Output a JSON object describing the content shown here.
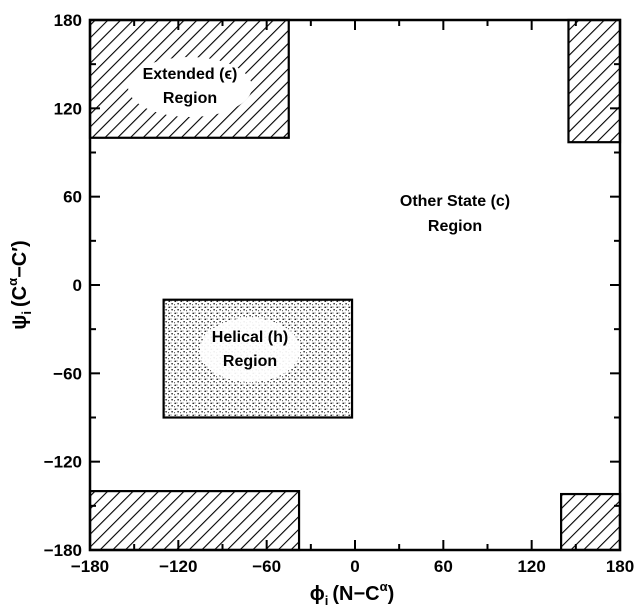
{
  "diagram": {
    "type": "ramachandran-map",
    "x_axis": {
      "label_symbol": "ϕ",
      "label_subscript": "i",
      "label_rest": "(N−C",
      "label_sup": "α",
      "label_close": ")",
      "range": [
        -180,
        180
      ],
      "ticks": [
        -180,
        -120,
        -60,
        0,
        60,
        120,
        180
      ],
      "tick_labels": [
        "−180",
        "−120",
        "−60",
        "0",
        "60",
        "120",
        "180"
      ]
    },
    "y_axis": {
      "label_symbol": "ψ",
      "label_subscript": "i",
      "label_rest": "(C",
      "label_sup": "α",
      "label_close": "−C′)",
      "range": [
        -180,
        180
      ],
      "ticks": [
        -180,
        -120,
        -60,
        0,
        60,
        120,
        180
      ],
      "tick_labels": [
        "−180",
        "−120",
        "−60",
        "0",
        "60",
        "120",
        "180"
      ]
    },
    "regions": {
      "extended": {
        "label_lines": [
          "Extended (ϵ)",
          "Region"
        ],
        "fill": "hatched",
        "boxes": [
          {
            "phi": [
              -180,
              -45
            ],
            "psi": [
              100,
              180
            ]
          },
          {
            "phi": [
              145,
              180
            ],
            "psi": [
              97,
              180
            ]
          },
          {
            "phi": [
              -180,
              -38
            ],
            "psi": [
              -180,
              -140
            ]
          },
          {
            "phi": [
              140,
              180
            ],
            "psi": [
              -180,
              -142
            ]
          }
        ]
      },
      "helical": {
        "label_lines": [
          "Helical (h)",
          "Region"
        ],
        "fill": "stippled",
        "boxes": [
          {
            "phi": [
              -130,
              -2
            ],
            "psi": [
              -90,
              -10
            ]
          }
        ]
      },
      "other": {
        "label_lines": [
          "Other State (c)",
          "Region"
        ],
        "fill": "none"
      }
    },
    "colors": {
      "ink": "#000000",
      "background": "#ffffff"
    }
  }
}
